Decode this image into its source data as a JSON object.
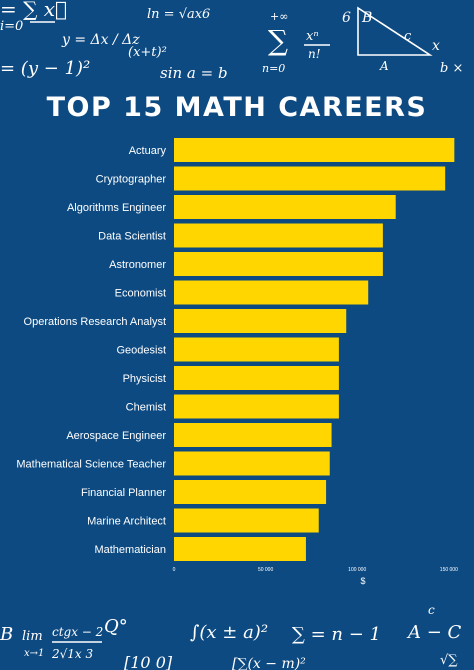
{
  "colors": {
    "background": "#0d4a82",
    "bar": "#ffd600",
    "text": "#ffffff"
  },
  "chart_data": {
    "type": "bar",
    "orientation": "horizontal",
    "title": "TOP 15 MATH CAREERS",
    "xlabel": "$",
    "ylabel": "",
    "xlim": [
      0,
      155000
    ],
    "xticks": [
      0,
      50000,
      100000,
      150000
    ],
    "xtick_labels": [
      "0",
      "50 000",
      "100 000",
      "150 000"
    ],
    "grid": false,
    "categories": [
      "Actuary",
      "Cryptographer",
      "Algorithms Engineer",
      "Data Scientist",
      "Astronomer",
      "Economist",
      "Operations Research Analyst",
      "Geodesist",
      "Physicist",
      "Chemist",
      "Aerospace Engineer",
      "Mathematical Science Teacher",
      "Financial Planner",
      "Marine Architect",
      "Mathematician"
    ],
    "values": [
      153000,
      148000,
      121000,
      114000,
      114000,
      106000,
      94000,
      90000,
      90000,
      90000,
      86000,
      85000,
      83000,
      79000,
      72000
    ]
  }
}
